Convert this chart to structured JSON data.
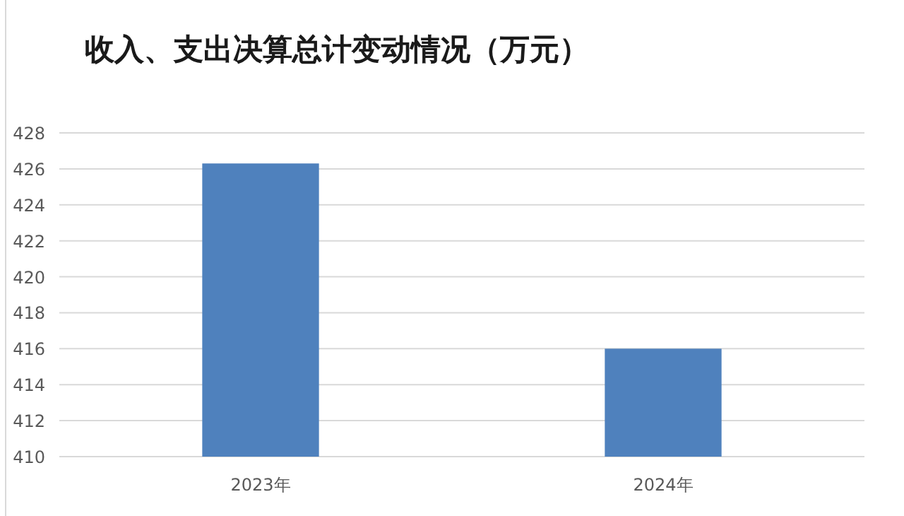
{
  "chart_data": {
    "type": "bar",
    "title": "收入、支出决算总计变动情况（万元）",
    "categories": [
      "2023年",
      "2024年"
    ],
    "values": [
      426.3,
      416.0
    ],
    "color": "#4f81bd",
    "ylim": [
      410,
      428
    ],
    "yticks": [
      410,
      412,
      414,
      416,
      418,
      420,
      422,
      424,
      426,
      428
    ],
    "grid": "y"
  }
}
